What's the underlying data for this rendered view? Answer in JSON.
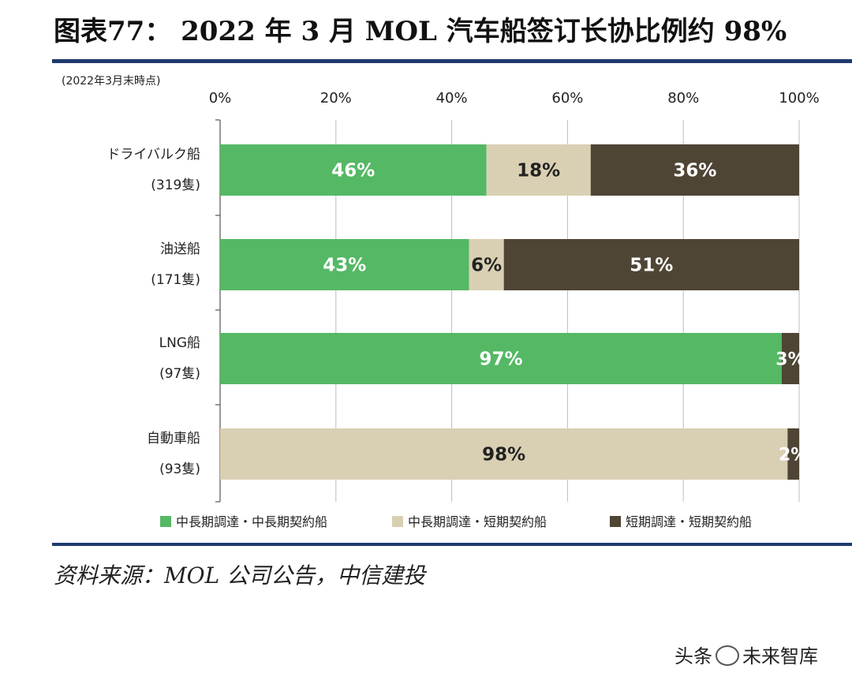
{
  "header": {
    "title": "图表77：  2022 年 3 月 MOL 汽车船签订长协比例约 98%"
  },
  "note": {
    "as_of": "(2022年3月末時点)"
  },
  "footer": {
    "source": "资料来源：MOL 公司公告，中信建投",
    "watermark_left": "头条",
    "watermark_right": "未来智库"
  },
  "colors": {
    "green": "#55b865",
    "beige": "#d9d0b3",
    "dark": "#4e4535",
    "grid": "#bdbdbd",
    "rule": "#1f3a6e"
  },
  "chart_data": {
    "type": "bar",
    "orientation": "horizontal",
    "stacked": true,
    "percent": true,
    "title": "2022 年 3 月 MOL 汽车船签订长协比例约 98%",
    "xlabel": "",
    "ylabel": "",
    "xlim": [
      0,
      100
    ],
    "x_ticks": [
      "0%",
      "20%",
      "40%",
      "60%",
      "80%",
      "100%"
    ],
    "x_tick_values": [
      0,
      20,
      40,
      60,
      80,
      100
    ],
    "x_axis_position": "top",
    "grid": true,
    "legend_position": "bottom",
    "categories": [
      {
        "name": "ドライバルク船",
        "count": "(319隻)"
      },
      {
        "name": "油送船",
        "count": "(171隻)"
      },
      {
        "name": "LNG船",
        "count": "(97隻)"
      },
      {
        "name": "自動車船",
        "count": "(93隻)"
      }
    ],
    "series": [
      {
        "name": "中長期調達・中長期契約船",
        "color": "#55b865",
        "label_color": "#ffffff",
        "values": [
          46,
          43,
          97,
          0
        ],
        "labels": [
          "46%",
          "43%",
          "97%",
          ""
        ]
      },
      {
        "name": "中長期調達・短期契約船",
        "color": "#d9d0b3",
        "label_color": "#222222",
        "values": [
          18,
          6,
          0,
          98
        ],
        "labels": [
          "18%",
          "6%",
          "",
          "98%"
        ]
      },
      {
        "name": "短期調達・短期契約船",
        "color": "#4e4535",
        "label_color": "#ffffff",
        "values": [
          36,
          51,
          3,
          2
        ],
        "labels": [
          "36%",
          "51%",
          "3%",
          "2%"
        ]
      }
    ]
  }
}
